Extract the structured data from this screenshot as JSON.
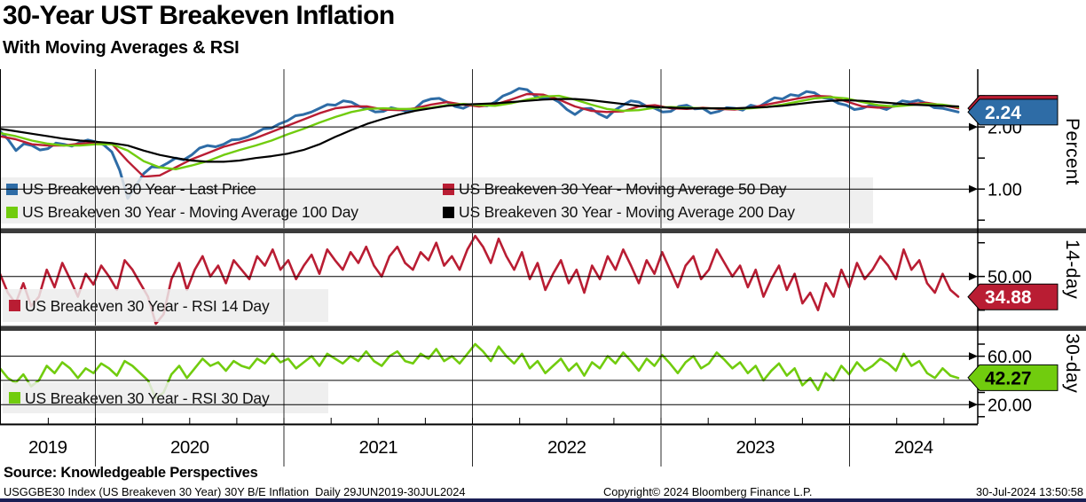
{
  "header": {
    "title": "30-Year UST Breakeven Inflation",
    "subtitle": "With Moving Averages & RSI"
  },
  "source_line": "Source: Knowledgeable Perspectives",
  "footer": {
    "left": "USGGBE30 Index (US Breakeven 30 Year) 30Y B/E Inflation  Daily 29JUN2019-30JUL2024",
    "center": "Copyright© 2024 Bloomberg Finance L.P.",
    "right": "30-Jul-2024 13:50:58"
  },
  "colors": {
    "blue": "#2e6ca6",
    "red": "#b91d33",
    "green": "#71cc0e",
    "black": "#000000",
    "grid": "#2b2b2b",
    "divider": "#3b3b3b",
    "legend_bg": "#ececec",
    "bottom_strip": "#1a1f55"
  },
  "chart_data": {
    "type": "line",
    "title": "30-Year UST Breakeven Inflation",
    "subtitle": "With Moving Averages & RSI",
    "x_axis": {
      "unit": "year",
      "tick_labels": [
        "2019",
        "2020",
        "2021",
        "2022",
        "2023",
        "2024"
      ],
      "range_start": "29JUN2019",
      "range_end": "30JUL2024",
      "grid": true
    },
    "panels": [
      {
        "id": "price",
        "axis_title": "Percent",
        "ylim": [
          0.36,
          2.93
        ],
        "gridlines": [
          2.0,
          1.0
        ],
        "major_tick_labels": [
          {
            "value": 2.0,
            "label": "2.00"
          },
          {
            "value": 1.0,
            "label": "1.00"
          }
        ],
        "minor_ticks": [
          2.5,
          1.5,
          0.5
        ],
        "last_value_badge": {
          "label": "2.24",
          "value": 2.24,
          "color_key": "blue",
          "text_color": "#ffffff",
          "under_badge": {
            "value": 2.3,
            "color_key": "red"
          }
        },
        "legend": [
          {
            "label": "US Breakeven 30 Year - Last Price",
            "color_key": "blue"
          },
          {
            "label": "US Breakeven 30 Year - Moving Average 50 Day",
            "color_key": "red"
          },
          {
            "label": "US Breakeven 30 Year - Moving Average 100 Day",
            "color_key": "green"
          },
          {
            "label": "US Breakeven 30 Year - Moving Average 200 Day",
            "color_key": "black"
          }
        ],
        "series": [
          {
            "name": "US Breakeven 30 Year - Last Price",
            "color_key": "blue",
            "line_width": 3,
            "values": [
              1.93,
              1.8,
              1.62,
              1.73,
              1.7,
              1.63,
              1.65,
              1.74,
              1.72,
              1.69,
              1.75,
              1.79,
              1.76,
              1.71,
              1.6,
              1.3,
              0.85,
              1.05,
              1.25,
              1.36,
              1.35,
              1.42,
              1.5,
              1.47,
              1.55,
              1.66,
              1.7,
              1.68,
              1.72,
              1.79,
              1.8,
              1.84,
              1.9,
              1.97,
              1.98,
              2.05,
              2.1,
              2.18,
              2.2,
              2.24,
              2.3,
              2.36,
              2.35,
              2.42,
              2.4,
              2.33,
              2.3,
              2.24,
              2.25,
              2.31,
              2.28,
              2.25,
              2.3,
              2.41,
              2.45,
              2.46,
              2.4,
              2.33,
              2.3,
              2.36,
              2.35,
              2.34,
              2.4,
              2.5,
              2.55,
              2.62,
              2.6,
              2.5,
              2.45,
              2.47,
              2.4,
              2.28,
              2.2,
              2.29,
              2.3,
              2.21,
              2.15,
              2.27,
              2.35,
              2.42,
              2.4,
              2.33,
              2.3,
              2.24,
              2.25,
              2.33,
              2.35,
              2.29,
              2.3,
              2.22,
              2.25,
              2.31,
              2.3,
              2.27,
              2.35,
              2.32,
              2.4,
              2.47,
              2.45,
              2.52,
              2.5,
              2.57,
              2.55,
              2.47,
              2.45,
              2.38,
              2.35,
              2.28,
              2.3,
              2.35,
              2.32,
              2.28,
              2.35,
              2.42,
              2.4,
              2.43,
              2.38,
              2.31,
              2.3,
              2.27,
              2.24
            ]
          },
          {
            "name": "US Breakeven 30 Year - Moving Average 50 Day",
            "color_key": "red",
            "line_width": 2.4,
            "values": [
              1.85,
              1.8,
              1.72,
              1.7,
              1.7,
              1.73,
              1.75,
              1.73,
              1.45,
              1.2,
              1.22,
              1.35,
              1.48,
              1.58,
              1.68,
              1.75,
              1.82,
              1.92,
              2.02,
              2.12,
              2.22,
              2.3,
              2.33,
              2.33,
              2.28,
              2.27,
              2.3,
              2.36,
              2.4,
              2.36,
              2.33,
              2.36,
              2.44,
              2.53,
              2.52,
              2.44,
              2.33,
              2.26,
              2.24,
              2.25,
              2.33,
              2.35,
              2.3,
              2.29,
              2.31,
              2.29,
              2.28,
              2.31,
              2.36,
              2.41,
              2.46,
              2.5,
              2.49,
              2.41,
              2.33,
              2.31,
              2.33,
              2.37,
              2.39,
              2.35,
              2.3
            ]
          },
          {
            "name": "US Breakeven 30 Year - Moving Average 100 Day",
            "color_key": "green",
            "line_width": 2.4,
            "values": [
              1.9,
              1.85,
              1.78,
              1.73,
              1.7,
              1.7,
              1.72,
              1.72,
              1.62,
              1.45,
              1.35,
              1.32,
              1.38,
              1.45,
              1.55,
              1.63,
              1.7,
              1.78,
              1.88,
              1.97,
              2.07,
              2.16,
              2.24,
              2.29,
              2.3,
              2.29,
              2.29,
              2.31,
              2.35,
              2.37,
              2.35,
              2.34,
              2.38,
              2.44,
              2.49,
              2.5,
              2.44,
              2.36,
              2.29,
              2.26,
              2.27,
              2.31,
              2.32,
              2.31,
              2.3,
              2.3,
              2.29,
              2.3,
              2.32,
              2.36,
              2.41,
              2.46,
              2.48,
              2.46,
              2.4,
              2.35,
              2.33,
              2.35,
              2.37,
              2.36,
              2.32
            ]
          },
          {
            "name": "US Breakeven 30 Year - Moving Average 200 Day",
            "color_key": "black",
            "line_width": 2.2,
            "values": [
              1.97,
              1.93,
              1.89,
              1.85,
              1.81,
              1.78,
              1.76,
              1.74,
              1.7,
              1.62,
              1.55,
              1.5,
              1.46,
              1.44,
              1.44,
              1.46,
              1.5,
              1.53,
              1.57,
              1.63,
              1.72,
              1.84,
              1.95,
              2.05,
              2.13,
              2.2,
              2.26,
              2.3,
              2.34,
              2.36,
              2.37,
              2.38,
              2.4,
              2.42,
              2.44,
              2.45,
              2.45,
              2.43,
              2.4,
              2.37,
              2.34,
              2.32,
              2.31,
              2.3,
              2.3,
              2.3,
              2.3,
              2.31,
              2.32,
              2.34,
              2.37,
              2.4,
              2.42,
              2.43,
              2.42,
              2.4,
              2.38,
              2.36,
              2.35,
              2.34,
              2.33
            ]
          }
        ]
      },
      {
        "id": "rsi14",
        "axis_title": "14-day",
        "ylim": [
          13,
          82
        ],
        "gridlines": [
          50
        ],
        "major_tick_labels": [
          {
            "value": 50,
            "label": "50.00"
          }
        ],
        "minor_ticks": [
          75,
          25
        ],
        "last_value_badge": {
          "label": "34.88",
          "value": 34.88,
          "color_key": "red",
          "text_color": "#ffffff"
        },
        "legend": [
          {
            "label": "US Breakeven 30 Year - RSI 14 Day",
            "color_key": "red"
          }
        ],
        "series": [
          {
            "name": "US Breakeven 30 Year - RSI 14 Day",
            "color_key": "red",
            "line_width": 2.6,
            "values": [
              52,
              38,
              30,
              45,
              28,
              35,
              55,
              42,
              60,
              48,
              35,
              52,
              44,
              58,
              50,
              40,
              62,
              55,
              45,
              35,
              15,
              22,
              48,
              60,
              40,
              55,
              65,
              50,
              58,
              45,
              62,
              55,
              48,
              65,
              58,
              70,
              55,
              62,
              48,
              58,
              66,
              52,
              70,
              62,
              55,
              68,
              60,
              72,
              58,
              50,
              65,
              72,
              60,
              55,
              68,
              62,
              75,
              58,
              65,
              55,
              70,
              80,
              72,
              60,
              78,
              65,
              55,
              68,
              48,
              60,
              40,
              52,
              62,
              45,
              55,
              38,
              58,
              48,
              65,
              55,
              70,
              58,
              45,
              62,
              52,
              68,
              55,
              42,
              58,
              65,
              48,
              55,
              70,
              60,
              50,
              58,
              42,
              55,
              35,
              48,
              58,
              40,
              52,
              30,
              38,
              25,
              45,
              35,
              55,
              42,
              60,
              48,
              55,
              65,
              58,
              48,
              70,
              55,
              62,
              45,
              38,
              52,
              40,
              35
            ]
          }
        ]
      },
      {
        "id": "rsi30",
        "axis_title": "30-day",
        "ylim": [
          4,
          81
        ],
        "gridlines": [
          60,
          40,
          20
        ],
        "major_tick_labels": [
          {
            "value": 60,
            "label": "60.00"
          },
          {
            "value": 20,
            "label": "20.00"
          }
        ],
        "minor_ticks": [
          70,
          50,
          30,
          10
        ],
        "last_value_badge": {
          "label": "42.27",
          "value": 42.27,
          "color_key": "green",
          "text_color": "#000000"
        },
        "legend": [
          {
            "label": "US Breakeven 30 Year - RSI 30 Day",
            "color_key": "green"
          }
        ],
        "series": [
          {
            "name": "US Breakeven 30 Year - RSI 30 Day",
            "color_key": "green",
            "line_width": 2.6,
            "values": [
              50,
              42,
              38,
              45,
              35,
              40,
              52,
              46,
              55,
              50,
              42,
              50,
              46,
              54,
              50,
              44,
              56,
              52,
              46,
              40,
              25,
              30,
              45,
              52,
              42,
              50,
              58,
              52,
              55,
              48,
              56,
              52,
              50,
              58,
              54,
              62,
              55,
              58,
              50,
              55,
              60,
              52,
              62,
              58,
              54,
              60,
              56,
              64,
              56,
              52,
              60,
              64,
              56,
              54,
              62,
              58,
              66,
              56,
              60,
              54,
              62,
              70,
              64,
              56,
              68,
              60,
              54,
              62,
              50,
              56,
              46,
              52,
              58,
              48,
              54,
              44,
              55,
              50,
              60,
              54,
              63,
              56,
              48,
              58,
              52,
              61,
              54,
              46,
              55,
              60,
              50,
              54,
              63,
              57,
              50,
              55,
              46,
              52,
              40,
              48,
              54,
              44,
              50,
              36,
              42,
              32,
              46,
              40,
              52,
              45,
              55,
              48,
              52,
              58,
              54,
              48,
              62,
              52,
              56,
              46,
              42,
              50,
              44,
              42
            ]
          }
        ]
      }
    ]
  }
}
